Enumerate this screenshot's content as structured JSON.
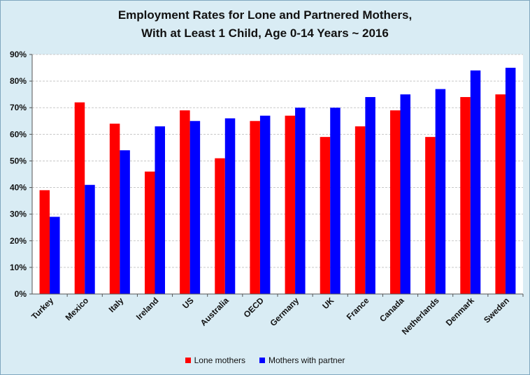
{
  "chart_data": {
    "type": "bar",
    "title_line1": "Employment Rates for Lone and Partnered Mothers,",
    "title_line2": "With at Least 1 Child, Age 0-14 Years ~ 2016",
    "categories": [
      "Turkey",
      "Mexico",
      "Italy",
      "Ireland",
      "US",
      "Australia",
      "OECD",
      "Germany",
      "UK",
      "France",
      "Canada",
      "Netherlands",
      "Denmark",
      "Sweden"
    ],
    "series": [
      {
        "name": "Lone mothers",
        "color": "#ff0000",
        "values": [
          39,
          72,
          64,
          46,
          69,
          51,
          65,
          67,
          59,
          63,
          69,
          59,
          74,
          75
        ]
      },
      {
        "name": "Mothers with partner",
        "color": "#0000ff",
        "values": [
          29,
          41,
          54,
          63,
          65,
          66,
          67,
          70,
          70,
          74,
          75,
          77,
          84,
          85
        ]
      }
    ],
    "ylim": [
      0,
      90
    ],
    "yticks": [
      0,
      10,
      20,
      30,
      40,
      50,
      60,
      70,
      80,
      90
    ],
    "ytick_labels": [
      "0%",
      "10%",
      "20%",
      "30%",
      "40%",
      "50%",
      "60%",
      "70%",
      "80%",
      "90%"
    ],
    "grid": true,
    "legend": "bottom"
  }
}
